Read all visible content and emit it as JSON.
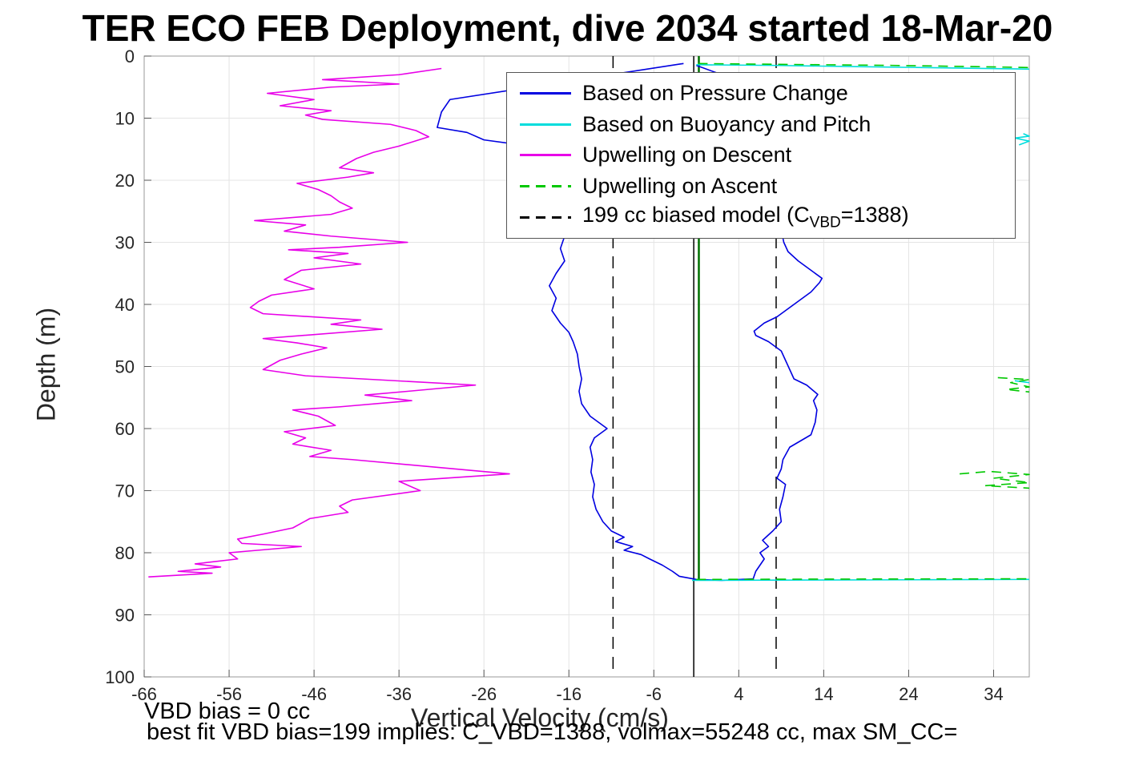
{
  "annotations": {
    "vbd_bias": "VBD bias = 0 cc",
    "best_fit": "best fit VBD bias=199 implies: C_VBD=1388, volmax=55248 cc, max SM_CC="
  },
  "legend": {
    "entries": [
      {
        "label": "Based on Pressure Change",
        "color": "#0000E0",
        "dash": false
      },
      {
        "label": "Based on Buoyancy and Pitch",
        "color": "#00DDDD",
        "dash": false
      },
      {
        "label": "Upwelling on Descent",
        "color": "#E800E8",
        "dash": false
      },
      {
        "label": "Upwelling on Ascent",
        "color": "#00C800",
        "dash": true
      },
      {
        "label": "199 cc biased model (C_VBD=1388)",
        "label_parts": {
          "prefix": "199 cc biased model (C",
          "sub": "VBD",
          "suffix": "=1388)"
        },
        "color": "#000000",
        "dash": true
      }
    ]
  },
  "chart_data": {
    "type": "line",
    "title": "TER ECO FEB Deployment, dive 2034 started 18-Mar-20",
    "xlabel": "Vertical Velocity (cm/s)",
    "ylabel": "Depth (m)",
    "xlim": [
      -66,
      38.2
    ],
    "ylim": [
      0,
      100
    ],
    "y_inverted": true,
    "grid": true,
    "legend_position": "upper right",
    "xticks": [
      -66,
      -56,
      -46,
      -36,
      -26,
      -16,
      -6,
      4,
      14,
      24,
      34
    ],
    "yticks": [
      0,
      10,
      20,
      30,
      40,
      50,
      60,
      70,
      80,
      90,
      100
    ],
    "vlines": [
      {
        "x": -10.8,
        "color": "#000000",
        "dash": true,
        "width": 1.5,
        "depth_range": [
          0,
          100
        ]
      },
      {
        "x": 8.4,
        "color": "#000000",
        "dash": true,
        "width": 1.5,
        "depth_range": [
          0,
          100
        ]
      },
      {
        "x": -1.3,
        "color": "#000000",
        "dash": false,
        "width": 1.5,
        "depth_range": [
          0,
          100
        ]
      },
      {
        "x": -0.7,
        "color": "#007000",
        "dash": false,
        "width": 2.5,
        "depth_range": [
          0,
          84.3
        ]
      }
    ],
    "series": [
      {
        "name": "Upwelling on Descent",
        "color": "#E800E8",
        "dash": false,
        "segments": [
          [
            [
              -31,
              2
            ],
            [
              -36,
              3
            ],
            [
              -45,
              3.8
            ],
            [
              -36,
              4.5
            ],
            [
              -44,
              5
            ],
            [
              -51.5,
              6
            ],
            [
              -46,
              7
            ],
            [
              -50,
              8
            ],
            [
              -44,
              8.8
            ],
            [
              -47,
              9.5
            ],
            [
              -45,
              10.2
            ],
            [
              -37,
              11
            ],
            [
              -34,
              12
            ],
            [
              -32.5,
              13
            ],
            [
              -36,
              14.5
            ],
            [
              -39,
              15.5
            ],
            [
              -41,
              16.5
            ],
            [
              -43,
              18
            ],
            [
              -39,
              18.8
            ],
            [
              -42,
              19.5
            ],
            [
              -48,
              20.5
            ],
            [
              -45.5,
              21.5
            ],
            [
              -44,
              22.5
            ],
            [
              -43,
              23.5
            ],
            [
              -41.5,
              24.5
            ],
            [
              -44,
              25.5
            ],
            [
              -53,
              26.5
            ],
            [
              -47,
              27.2
            ],
            [
              -49.5,
              28.2
            ],
            [
              -44,
              29
            ],
            [
              -35,
              30
            ],
            [
              -43,
              30.8
            ],
            [
              -49,
              31.2
            ],
            [
              -42,
              31.8
            ],
            [
              -46,
              32.5
            ],
            [
              -40.5,
              33.5
            ],
            [
              -47.5,
              34.5
            ],
            [
              -49.5,
              36
            ],
            [
              -46,
              37.5
            ],
            [
              -51,
              38.5
            ],
            [
              -52.5,
              39.5
            ],
            [
              -53.5,
              40.5
            ],
            [
              -52,
              41.5
            ],
            [
              -40.5,
              42.5
            ],
            [
              -44,
              43.2
            ],
            [
              -38,
              44
            ],
            [
              -52,
              45.5
            ],
            [
              -48,
              46.2
            ],
            [
              -44.5,
              47
            ],
            [
              -47.5,
              48
            ],
            [
              -50,
              49
            ],
            [
              -52,
              50.5
            ],
            [
              -47,
              51.5
            ],
            [
              -27,
              53
            ],
            [
              -35,
              54
            ],
            [
              -40,
              54.6
            ],
            [
              -34.5,
              55.5
            ],
            [
              -43,
              56.5
            ],
            [
              -48.5,
              57
            ],
            [
              -45.5,
              58
            ],
            [
              -43.5,
              59.5
            ],
            [
              -49.5,
              60.5
            ],
            [
              -47,
              61.5
            ],
            [
              -48.5,
              62.5
            ],
            [
              -44,
              63.5
            ],
            [
              -46.5,
              64.5
            ],
            [
              -41.5,
              65
            ],
            [
              -23,
              67.3
            ],
            [
              -36,
              68.5
            ],
            [
              -33.5,
              70
            ],
            [
              -41.5,
              71.5
            ],
            [
              -43,
              72.5
            ],
            [
              -42,
              73.5
            ],
            [
              -46.5,
              74.5
            ],
            [
              -48.5,
              76
            ],
            [
              -52,
              77
            ],
            [
              -55,
              77.8
            ],
            [
              -54.5,
              78.5
            ],
            [
              -47.5,
              79
            ],
            [
              -56,
              80
            ],
            [
              -55,
              81
            ],
            [
              -60,
              81.8
            ],
            [
              -57,
              82.3
            ],
            [
              -62,
              83
            ],
            [
              -58,
              83.3
            ],
            [
              -65.5,
              83.9
            ]
          ]
        ]
      },
      {
        "name": "Based on Pressure Change",
        "color": "#0000E0",
        "dash": false,
        "segments": [
          [
            [
              -2.5,
              1.2
            ],
            [
              -3,
              1.3
            ],
            [
              -30,
              7
            ],
            [
              -31,
              9
            ],
            [
              -31.5,
              11.5
            ],
            [
              -28,
              12.3
            ],
            [
              -26,
              13.5
            ],
            [
              -18,
              15
            ],
            [
              -15,
              16.5
            ],
            [
              -14.5,
              20
            ],
            [
              -15,
              24
            ],
            [
              -16,
              27
            ],
            [
              -16.5,
              29
            ],
            [
              -17,
              31
            ],
            [
              -16.5,
              33
            ],
            [
              -17.5,
              35
            ],
            [
              -18.3,
              37
            ],
            [
              -17.5,
              39
            ],
            [
              -18,
              41
            ],
            [
              -17,
              43
            ],
            [
              -16,
              44.5
            ],
            [
              -15.5,
              46
            ],
            [
              -15,
              48
            ],
            [
              -14.8,
              50
            ],
            [
              -14.5,
              52
            ],
            [
              -14.8,
              54
            ],
            [
              -14.5,
              56
            ],
            [
              -13.5,
              58
            ],
            [
              -11.5,
              60
            ],
            [
              -13,
              61.5
            ],
            [
              -13.5,
              63
            ],
            [
              -13.2,
              65
            ],
            [
              -13.4,
              67
            ],
            [
              -13,
              69
            ],
            [
              -13.2,
              71
            ],
            [
              -12.8,
              73
            ],
            [
              -12,
              75
            ],
            [
              -11,
              76.5
            ],
            [
              -9.5,
              77.5
            ],
            [
              -10.5,
              78.2
            ],
            [
              -8.5,
              79
            ],
            [
              -9.5,
              79.6
            ],
            [
              -7.5,
              80.3
            ],
            [
              -6.5,
              81
            ],
            [
              -5,
              82
            ],
            [
              -3.8,
              83
            ],
            [
              -3,
              83.8
            ],
            [
              -1,
              84.3
            ],
            [
              2,
              84.45
            ],
            [
              5.7,
              84.2
            ],
            [
              6,
              83
            ],
            [
              7,
              81
            ],
            [
              6.5,
              80
            ],
            [
              7.5,
              79
            ],
            [
              6.8,
              78
            ],
            [
              8,
              76.5
            ],
            [
              9,
              75
            ],
            [
              8.8,
              73
            ],
            [
              9.2,
              71
            ],
            [
              9.5,
              69
            ],
            [
              8.5,
              68
            ],
            [
              9,
              66.5
            ],
            [
              9.2,
              65
            ],
            [
              10,
              63
            ],
            [
              12.5,
              61
            ],
            [
              13,
              59
            ],
            [
              13.2,
              57
            ],
            [
              12.8,
              55.5
            ],
            [
              13.3,
              54.5
            ],
            [
              12,
              53
            ],
            [
              10.5,
              52
            ],
            [
              10,
              50.5
            ],
            [
              9.5,
              49
            ],
            [
              9,
              47.5
            ],
            [
              7.5,
              46
            ],
            [
              6,
              45
            ],
            [
              5.8,
              44.3
            ],
            [
              7,
              43
            ],
            [
              8.5,
              42
            ],
            [
              9.5,
              41
            ],
            [
              11,
              39.5
            ],
            [
              12.5,
              38
            ],
            [
              13.5,
              36.5
            ],
            [
              13.8,
              35.8
            ],
            [
              12.5,
              34.5
            ],
            [
              11,
              33
            ],
            [
              9.8,
              31.5
            ],
            [
              9.3,
              30
            ],
            [
              9,
              28
            ],
            [
              8.8,
              26
            ],
            [
              8.5,
              20
            ],
            [
              8,
              14
            ],
            [
              6,
              8
            ],
            [
              2,
              3
            ],
            [
              -1,
              1.5
            ]
          ]
        ]
      },
      {
        "name": "Based on Buoyancy and Pitch",
        "color": "#00DDDD",
        "dash": false,
        "segments": [
          [
            [
              -1,
              1.4
            ],
            [
              8,
              1.5
            ],
            [
              18,
              1.7
            ],
            [
              28,
              1.9
            ],
            [
              38.2,
              2.1
            ]
          ],
          [
            [
              37.5,
              12.5
            ],
            [
              38.2,
              12.9
            ],
            [
              36.5,
              13.2
            ],
            [
              38.2,
              13.7
            ],
            [
              37,
              14.3
            ]
          ],
          [
            [
              36.5,
              52.3
            ],
            [
              38.2,
              52.6
            ]
          ],
          [
            [
              -1.5,
              84.45
            ],
            [
              12,
              84.4
            ],
            [
              26,
              84.35
            ],
            [
              38.2,
              84.3
            ]
          ]
        ]
      },
      {
        "name": "Upwelling on Ascent",
        "color": "#00C800",
        "dash": true,
        "segments": [
          [
            [
              -0.8,
              1.2
            ],
            [
              10,
              1.35
            ],
            [
              22,
              1.5
            ],
            [
              32,
              1.7
            ],
            [
              38.2,
              1.85
            ]
          ],
          [
            [
              34.5,
              51.8
            ],
            [
              38.2,
              52.1
            ],
            [
              36,
              52.6
            ],
            [
              38.2,
              53.3
            ],
            [
              35.5,
              53.7
            ],
            [
              38.2,
              54.1
            ]
          ],
          [
            [
              30,
              67.3
            ],
            [
              33.5,
              66.9
            ],
            [
              38.2,
              67.4
            ],
            [
              34,
              68
            ],
            [
              38.2,
              68.7
            ],
            [
              33,
              69.2
            ],
            [
              38.2,
              69.6
            ]
          ],
          [
            [
              -1,
              84.3
            ],
            [
              14,
              84.25
            ],
            [
              38.2,
              84.2
            ]
          ]
        ]
      }
    ]
  }
}
